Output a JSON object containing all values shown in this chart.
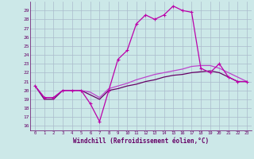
{
  "x": [
    0,
    1,
    2,
    3,
    4,
    5,
    6,
    7,
    8,
    9,
    10,
    11,
    12,
    13,
    14,
    15,
    16,
    17,
    18,
    19,
    20,
    21,
    22,
    23
  ],
  "line1": [
    20.5,
    19.2,
    19.2,
    20.0,
    20.0,
    20.0,
    18.5,
    16.5,
    20.0,
    23.5,
    24.5,
    27.5,
    28.5,
    28.0,
    28.5,
    29.5,
    29.0,
    28.8,
    22.5,
    22.0,
    23.0,
    21.5,
    21.0,
    21.0
  ],
  "line2": [
    20.5,
    19.0,
    19.0,
    20.0,
    20.0,
    20.0,
    19.5,
    19.0,
    20.0,
    20.2,
    20.5,
    20.7,
    21.0,
    21.2,
    21.5,
    21.7,
    21.8,
    22.0,
    22.1,
    22.2,
    22.0,
    21.5,
    21.0,
    21.0
  ],
  "line3": [
    20.5,
    19.2,
    19.2,
    20.0,
    20.0,
    20.0,
    19.8,
    19.2,
    20.2,
    20.5,
    20.8,
    21.2,
    21.5,
    21.8,
    22.0,
    22.2,
    22.4,
    22.7,
    22.8,
    22.8,
    22.5,
    22.0,
    21.5,
    21.0
  ],
  "color1": "#bb00aa",
  "color2": "#660066",
  "color3": "#bb44cc",
  "bg_color": "#cce8e8",
  "grid_color": "#aabbcc",
  "ylabel_ticks": [
    16,
    17,
    18,
    19,
    20,
    21,
    22,
    23,
    24,
    25,
    26,
    27,
    28,
    29
  ],
  "ylim": [
    15.5,
    30.0
  ],
  "xlim": [
    -0.5,
    23.5
  ],
  "xlabel": "Windchill (Refroidissement éolien,°C)",
  "xtick_labels": [
    "0",
    "1",
    "2",
    "3",
    "4",
    "5",
    "6",
    "7",
    "8",
    "9",
    "10",
    "11",
    "12",
    "13",
    "14",
    "15",
    "16",
    "17",
    "18",
    "19",
    "20",
    "21",
    "22",
    "23"
  ]
}
